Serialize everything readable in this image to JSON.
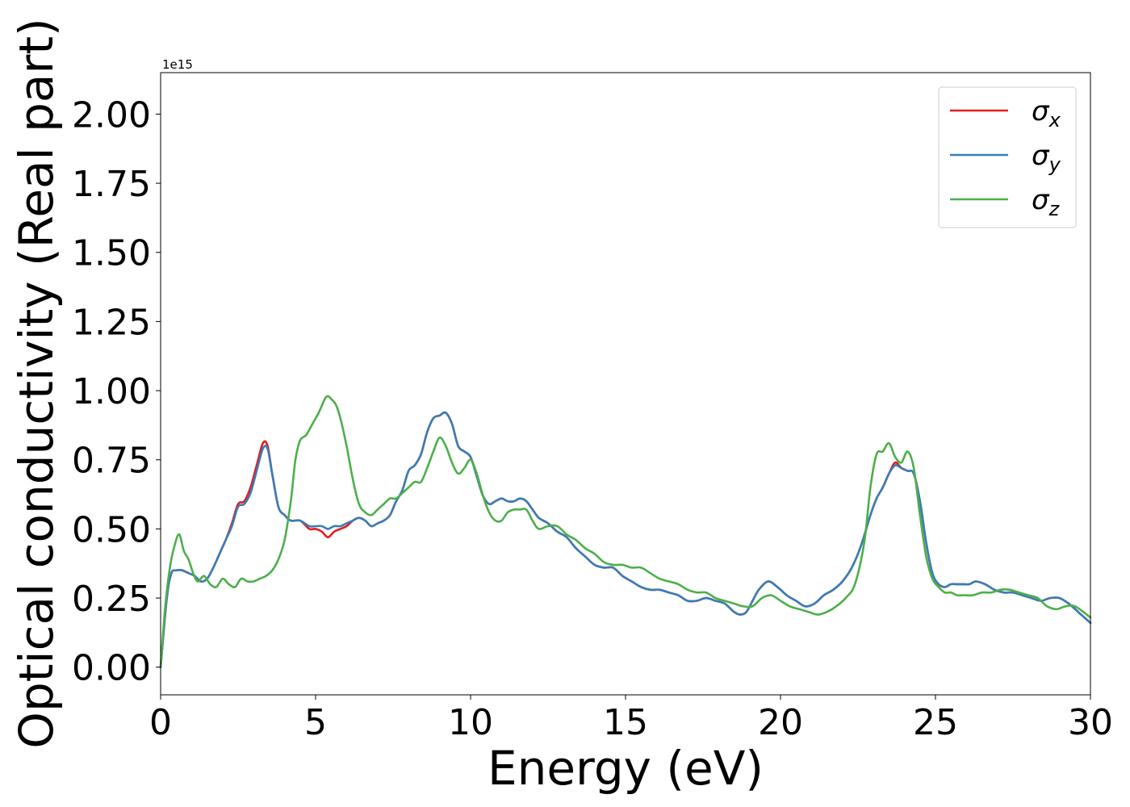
{
  "chart_data": {
    "type": "line",
    "xlabel": "Energy (eV)",
    "ylabel": "Optical conductivity (Real part)",
    "offset_text": "1e15",
    "xlim": [
      0,
      30
    ],
    "ylim": [
      -0.1,
      2.15
    ],
    "x_ticks": [
      0,
      5,
      10,
      15,
      20,
      25,
      30
    ],
    "x_tick_labels": [
      "0",
      "5",
      "10",
      "15",
      "20",
      "25",
      "30"
    ],
    "y_ticks": [
      0,
      0.25,
      0.5,
      0.75,
      1.0,
      1.25,
      1.5,
      1.75,
      2.0
    ],
    "y_tick_labels": [
      "0.00",
      "0.25",
      "0.50",
      "0.75",
      "1.00",
      "1.25",
      "1.50",
      "1.75",
      "2.00"
    ],
    "grid": false,
    "legend_position": "top-right",
    "series": [
      {
        "name": "σx",
        "legend_base": "σ",
        "legend_sub": "x",
        "color": "#e41a1c",
        "x": [
          0,
          0.2,
          0.35,
          0.5,
          0.7,
          0.9,
          1.1,
          1.3,
          1.5,
          1.7,
          1.9,
          2.1,
          2.3,
          2.5,
          2.7,
          2.9,
          3.1,
          3.3,
          3.45,
          3.6,
          3.8,
          4.0,
          4.2,
          4.5,
          4.8,
          5.0,
          5.2,
          5.4,
          5.6,
          5.8,
          6.0,
          6.2,
          6.4,
          6.6,
          6.8,
          7.0,
          7.2,
          7.4,
          7.6,
          7.8,
          8.0,
          8.2,
          8.4,
          8.6,
          8.8,
          9.0,
          9.2,
          9.4,
          9.6,
          9.8,
          10.0,
          10.2,
          10.4,
          10.6,
          10.8,
          11.0,
          11.2,
          11.4,
          11.6,
          11.8,
          12.0,
          12.2,
          12.5,
          12.8,
          13.1,
          13.4,
          13.7,
          14.0,
          14.3,
          14.6,
          14.9,
          15.2,
          15.5,
          15.8,
          16.1,
          16.4,
          16.7,
          17.0,
          17.3,
          17.6,
          17.9,
          18.2,
          18.5,
          18.7,
          18.9,
          19.1,
          19.3,
          19.6,
          19.9,
          20.2,
          20.5,
          20.8,
          21.1,
          21.4,
          21.7,
          22.0,
          22.3,
          22.6,
          22.9,
          23.1,
          23.3,
          23.5,
          23.7,
          23.9,
          24.1,
          24.3,
          24.5,
          24.7,
          24.9,
          25.1,
          25.3,
          25.5,
          25.7,
          25.9,
          26.1,
          26.3,
          26.6,
          26.9,
          27.2,
          27.5,
          27.8,
          28.1,
          28.4,
          28.7,
          29.0,
          29.3,
          29.6,
          30.0
        ],
        "values": [
          0.0,
          0.25,
          0.34,
          0.35,
          0.35,
          0.34,
          0.33,
          0.31,
          0.32,
          0.36,
          0.41,
          0.46,
          0.52,
          0.59,
          0.6,
          0.65,
          0.73,
          0.81,
          0.8,
          0.7,
          0.58,
          0.55,
          0.53,
          0.53,
          0.5,
          0.5,
          0.49,
          0.47,
          0.49,
          0.5,
          0.51,
          0.53,
          0.54,
          0.53,
          0.51,
          0.52,
          0.53,
          0.55,
          0.6,
          0.64,
          0.71,
          0.73,
          0.77,
          0.85,
          0.9,
          0.91,
          0.92,
          0.88,
          0.8,
          0.78,
          0.76,
          0.69,
          0.62,
          0.59,
          0.6,
          0.61,
          0.6,
          0.6,
          0.61,
          0.6,
          0.57,
          0.54,
          0.52,
          0.49,
          0.47,
          0.43,
          0.4,
          0.37,
          0.36,
          0.36,
          0.33,
          0.31,
          0.29,
          0.28,
          0.28,
          0.27,
          0.26,
          0.24,
          0.24,
          0.25,
          0.24,
          0.23,
          0.2,
          0.19,
          0.2,
          0.24,
          0.28,
          0.31,
          0.29,
          0.26,
          0.24,
          0.22,
          0.23,
          0.26,
          0.28,
          0.31,
          0.36,
          0.44,
          0.55,
          0.61,
          0.65,
          0.7,
          0.74,
          0.72,
          0.71,
          0.7,
          0.6,
          0.45,
          0.34,
          0.3,
          0.29,
          0.3,
          0.3,
          0.3,
          0.3,
          0.31,
          0.3,
          0.28,
          0.27,
          0.27,
          0.26,
          0.25,
          0.24,
          0.25,
          0.25,
          0.23,
          0.2,
          0.16
        ]
      },
      {
        "name": "σy",
        "legend_base": "σ",
        "legend_sub": "y",
        "color": "#377eb8",
        "x": [
          0,
          0.2,
          0.35,
          0.5,
          0.7,
          0.9,
          1.1,
          1.3,
          1.5,
          1.7,
          1.9,
          2.1,
          2.3,
          2.5,
          2.7,
          2.9,
          3.1,
          3.3,
          3.45,
          3.6,
          3.8,
          4.0,
          4.2,
          4.5,
          4.8,
          5.0,
          5.2,
          5.4,
          5.6,
          5.8,
          6.0,
          6.2,
          6.4,
          6.6,
          6.8,
          7.0,
          7.2,
          7.4,
          7.6,
          7.8,
          8.0,
          8.2,
          8.4,
          8.6,
          8.8,
          9.0,
          9.2,
          9.4,
          9.6,
          9.8,
          10.0,
          10.2,
          10.4,
          10.6,
          10.8,
          11.0,
          11.2,
          11.4,
          11.6,
          11.8,
          12.0,
          12.2,
          12.5,
          12.8,
          13.1,
          13.4,
          13.7,
          14.0,
          14.3,
          14.6,
          14.9,
          15.2,
          15.5,
          15.8,
          16.1,
          16.4,
          16.7,
          17.0,
          17.3,
          17.6,
          17.9,
          18.2,
          18.5,
          18.7,
          18.9,
          19.1,
          19.3,
          19.6,
          19.9,
          20.2,
          20.5,
          20.8,
          21.1,
          21.4,
          21.7,
          22.0,
          22.3,
          22.6,
          22.9,
          23.1,
          23.3,
          23.5,
          23.7,
          23.9,
          24.1,
          24.3,
          24.5,
          24.7,
          24.9,
          25.1,
          25.3,
          25.5,
          25.7,
          25.9,
          26.1,
          26.3,
          26.6,
          26.9,
          27.2,
          27.5,
          27.8,
          28.1,
          28.4,
          28.7,
          29.0,
          29.3,
          29.6,
          30.0
        ],
        "values": [
          0.0,
          0.25,
          0.34,
          0.35,
          0.35,
          0.34,
          0.33,
          0.31,
          0.32,
          0.36,
          0.41,
          0.46,
          0.51,
          0.58,
          0.59,
          0.63,
          0.71,
          0.79,
          0.79,
          0.7,
          0.58,
          0.55,
          0.53,
          0.53,
          0.51,
          0.51,
          0.51,
          0.5,
          0.51,
          0.51,
          0.52,
          0.53,
          0.54,
          0.53,
          0.51,
          0.52,
          0.53,
          0.55,
          0.6,
          0.64,
          0.71,
          0.73,
          0.77,
          0.85,
          0.9,
          0.91,
          0.92,
          0.88,
          0.8,
          0.78,
          0.76,
          0.69,
          0.62,
          0.59,
          0.6,
          0.61,
          0.6,
          0.6,
          0.61,
          0.6,
          0.57,
          0.54,
          0.52,
          0.49,
          0.47,
          0.43,
          0.4,
          0.37,
          0.36,
          0.36,
          0.33,
          0.31,
          0.29,
          0.28,
          0.28,
          0.27,
          0.26,
          0.24,
          0.24,
          0.25,
          0.24,
          0.23,
          0.2,
          0.19,
          0.2,
          0.24,
          0.28,
          0.31,
          0.29,
          0.26,
          0.24,
          0.22,
          0.23,
          0.26,
          0.28,
          0.31,
          0.36,
          0.44,
          0.55,
          0.61,
          0.65,
          0.7,
          0.73,
          0.72,
          0.71,
          0.7,
          0.6,
          0.45,
          0.34,
          0.3,
          0.29,
          0.3,
          0.3,
          0.3,
          0.3,
          0.31,
          0.3,
          0.28,
          0.27,
          0.27,
          0.26,
          0.25,
          0.24,
          0.25,
          0.25,
          0.23,
          0.2,
          0.16
        ]
      },
      {
        "name": "σz",
        "legend_base": "σ",
        "legend_sub": "z",
        "color": "#4daf4a",
        "x": [
          0,
          0.15,
          0.3,
          0.45,
          0.6,
          0.75,
          0.9,
          1.05,
          1.2,
          1.4,
          1.6,
          1.8,
          2.0,
          2.2,
          2.4,
          2.6,
          2.8,
          3.0,
          3.2,
          3.4,
          3.6,
          3.8,
          4.0,
          4.2,
          4.35,
          4.5,
          4.7,
          4.9,
          5.1,
          5.3,
          5.4,
          5.5,
          5.65,
          5.8,
          6.0,
          6.2,
          6.4,
          6.6,
          6.8,
          7.0,
          7.2,
          7.4,
          7.6,
          7.8,
          8.0,
          8.2,
          8.4,
          8.6,
          8.8,
          9.0,
          9.2,
          9.4,
          9.6,
          9.8,
          10.0,
          10.2,
          10.4,
          10.6,
          10.8,
          11.0,
          11.2,
          11.4,
          11.6,
          11.8,
          12.0,
          12.2,
          12.5,
          12.8,
          13.1,
          13.4,
          13.7,
          14.0,
          14.3,
          14.6,
          14.9,
          15.2,
          15.5,
          15.8,
          16.1,
          16.4,
          16.7,
          17.0,
          17.3,
          17.6,
          17.9,
          18.2,
          18.5,
          18.8,
          19.1,
          19.4,
          19.7,
          20.0,
          20.3,
          20.6,
          20.9,
          21.2,
          21.5,
          21.8,
          22.1,
          22.4,
          22.7,
          22.9,
          23.1,
          23.3,
          23.5,
          23.7,
          23.9,
          24.1,
          24.3,
          24.5,
          24.7,
          24.9,
          25.1,
          25.3,
          25.5,
          25.7,
          25.9,
          26.2,
          26.5,
          26.8,
          27.1,
          27.4,
          27.7,
          28.0,
          28.3,
          28.6,
          28.9,
          29.2,
          29.5,
          30.0
        ],
        "values": [
          0.0,
          0.22,
          0.36,
          0.44,
          0.48,
          0.42,
          0.39,
          0.34,
          0.31,
          0.33,
          0.3,
          0.29,
          0.32,
          0.3,
          0.29,
          0.32,
          0.31,
          0.31,
          0.32,
          0.33,
          0.35,
          0.39,
          0.46,
          0.6,
          0.75,
          0.82,
          0.84,
          0.88,
          0.92,
          0.97,
          0.98,
          0.97,
          0.95,
          0.9,
          0.8,
          0.68,
          0.59,
          0.56,
          0.55,
          0.57,
          0.59,
          0.61,
          0.61,
          0.63,
          0.65,
          0.67,
          0.67,
          0.72,
          0.78,
          0.83,
          0.8,
          0.74,
          0.7,
          0.72,
          0.75,
          0.7,
          0.62,
          0.56,
          0.53,
          0.53,
          0.56,
          0.57,
          0.57,
          0.57,
          0.53,
          0.5,
          0.51,
          0.51,
          0.48,
          0.46,
          0.43,
          0.41,
          0.38,
          0.37,
          0.37,
          0.36,
          0.36,
          0.34,
          0.32,
          0.31,
          0.3,
          0.28,
          0.27,
          0.27,
          0.25,
          0.24,
          0.23,
          0.22,
          0.22,
          0.25,
          0.26,
          0.24,
          0.22,
          0.21,
          0.2,
          0.19,
          0.2,
          0.22,
          0.25,
          0.3,
          0.45,
          0.65,
          0.77,
          0.78,
          0.81,
          0.76,
          0.74,
          0.78,
          0.72,
          0.55,
          0.4,
          0.32,
          0.29,
          0.27,
          0.27,
          0.26,
          0.26,
          0.26,
          0.27,
          0.27,
          0.28,
          0.28,
          0.27,
          0.26,
          0.25,
          0.22,
          0.21,
          0.22,
          0.22,
          0.18
        ]
      }
    ]
  }
}
